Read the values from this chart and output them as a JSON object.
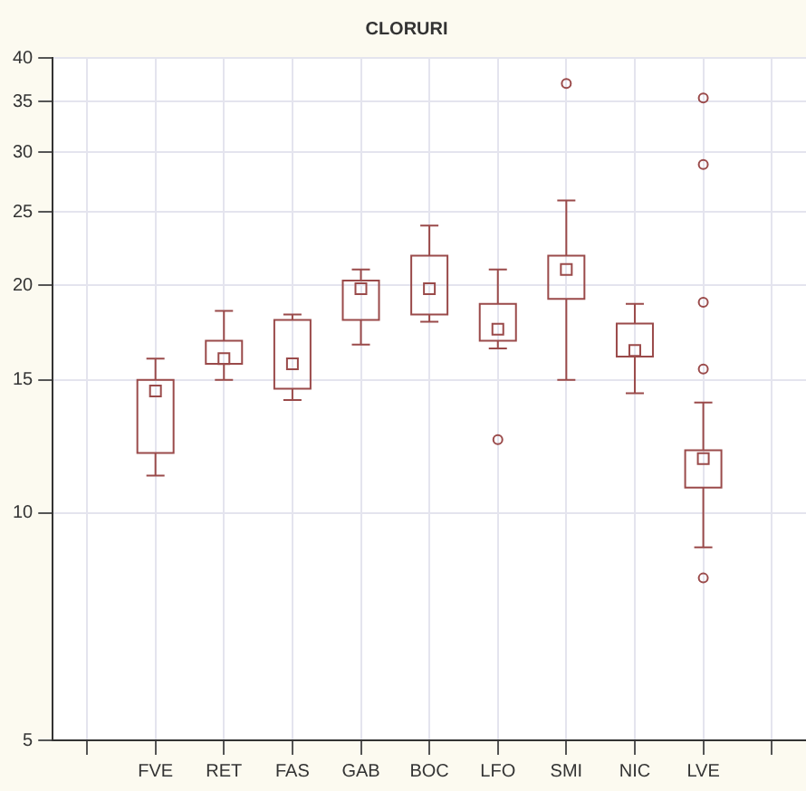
{
  "chart_data": {
    "type": "box",
    "title": "CLORURI",
    "categories": [
      null,
      "FVE",
      "RET",
      "FAS",
      "GAB",
      "BOC",
      "LFO",
      "SMI",
      "NIC",
      "LVE",
      null
    ],
    "series": [
      {
        "color": "#9a4a4a",
        "boxes": [
          null,
          {
            "low": 11.2,
            "q1": 12.0,
            "median": 14.5,
            "q3": 15.0,
            "high": 16.0
          },
          {
            "low": 15.0,
            "q1": 15.75,
            "median": 16.0,
            "q3": 16.9,
            "high": 18.5
          },
          {
            "low": 14.1,
            "q1": 14.6,
            "median": 15.75,
            "q3": 18.0,
            "high": 18.3
          },
          {
            "low": 16.7,
            "q1": 18.0,
            "median": 19.8,
            "q3": 20.3,
            "high": 21.0
          },
          {
            "low": 17.9,
            "q1": 18.3,
            "median": 19.8,
            "q3": 21.9,
            "high": 24.0
          },
          {
            "low": 16.5,
            "q1": 16.9,
            "median": 17.5,
            "q3": 18.9,
            "high": 21.0,
            "outliers": [
              12.5
            ]
          },
          {
            "low": 15.0,
            "q1": 19.2,
            "median": 21.0,
            "q3": 21.9,
            "high": 25.9,
            "outliers": [
              37.0
            ]
          },
          {
            "low": 14.4,
            "q1": 16.1,
            "median": 16.4,
            "q3": 17.8,
            "high": 18.9
          },
          {
            "low": 9.0,
            "q1": 10.8,
            "median": 11.8,
            "q3": 12.1,
            "high": 14.0,
            "outliers": [
              35.4,
              28.9,
              19.0,
              15.5,
              8.2
            ]
          },
          null
        ]
      }
    ],
    "log": true,
    "ylim": [
      5,
      40
    ],
    "yticks": [
      5,
      10,
      15,
      20,
      25,
      30,
      35,
      40
    ],
    "grid": true
  }
}
